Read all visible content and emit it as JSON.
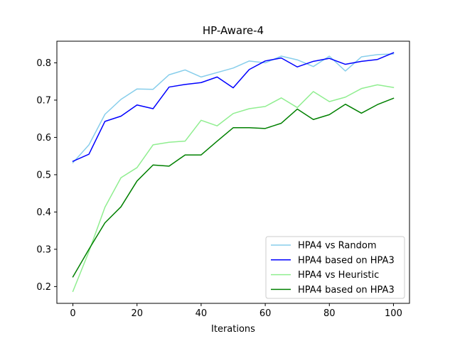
{
  "chart_data": {
    "type": "line",
    "title": "HP-Aware-4",
    "xlabel": "Iterations",
    "ylabel": "",
    "xlim": [
      -5,
      105
    ],
    "ylim": [
      0.155,
      0.858
    ],
    "xticks": [
      0,
      20,
      40,
      60,
      80,
      100
    ],
    "yticks": [
      0.2,
      0.3,
      0.4,
      0.5,
      0.6,
      0.7,
      0.8
    ],
    "grid": false,
    "legend_position": "lower-right",
    "x": [
      0,
      5,
      10,
      15,
      20,
      25,
      30,
      35,
      40,
      45,
      50,
      55,
      60,
      65,
      70,
      75,
      80,
      85,
      90,
      95,
      100
    ],
    "series": [
      {
        "name": "HPA4 vs Random",
        "color": "#87CEEB",
        "values": [
          0.532,
          0.58,
          0.662,
          0.702,
          0.73,
          0.729,
          0.768,
          0.781,
          0.762,
          0.774,
          0.786,
          0.805,
          0.8,
          0.818,
          0.808,
          0.79,
          0.818,
          0.778,
          0.816,
          0.822,
          0.824
        ]
      },
      {
        "name": "HPA4 based on HPA3",
        "color": "#0000FF",
        "values": [
          0.536,
          0.555,
          0.643,
          0.657,
          0.687,
          0.677,
          0.735,
          0.742,
          0.747,
          0.762,
          0.733,
          0.782,
          0.805,
          0.813,
          0.789,
          0.804,
          0.812,
          0.796,
          0.804,
          0.809,
          0.827
        ]
      },
      {
        "name": "HPA4 vs Heuristic",
        "color": "#90EE90",
        "values": [
          0.187,
          0.294,
          0.413,
          0.492,
          0.519,
          0.58,
          0.587,
          0.59,
          0.646,
          0.631,
          0.664,
          0.677,
          0.683,
          0.706,
          0.68,
          0.723,
          0.696,
          0.708,
          0.731,
          0.741,
          0.734
        ]
      },
      {
        "name": "HPA4 based on HPA3",
        "color": "#008000",
        "values": [
          0.226,
          0.3,
          0.371,
          0.414,
          0.483,
          0.526,
          0.523,
          0.553,
          0.553,
          0.59,
          0.626,
          0.626,
          0.624,
          0.638,
          0.676,
          0.648,
          0.661,
          0.689,
          0.665,
          0.688,
          0.705
        ]
      }
    ]
  }
}
